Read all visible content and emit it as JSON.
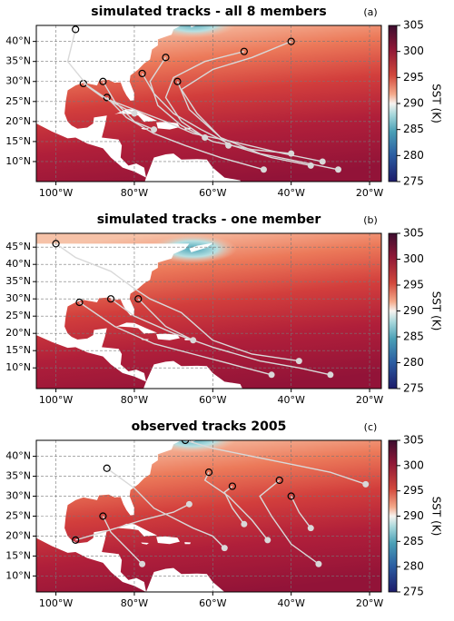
{
  "panels": [
    {
      "title": "simulated tracks - all 8 members",
      "label": "(a)",
      "xlim": [
        -105,
        -17
      ],
      "ylim": [
        5,
        44
      ],
      "xticks": [
        {
          "value": -100,
          "label": "100°W"
        },
        {
          "value": -80,
          "label": "80°W"
        },
        {
          "value": -60,
          "label": "60°W"
        },
        {
          "value": -40,
          "label": "40°W"
        },
        {
          "value": -20,
          "label": "20°W"
        }
      ],
      "yticks": [
        {
          "value": 10,
          "label": "10°N"
        },
        {
          "value": 15,
          "label": "15°N"
        },
        {
          "value": 20,
          "label": "20°N"
        },
        {
          "value": 25,
          "label": "25°N"
        },
        {
          "value": 30,
          "label": "30°N"
        },
        {
          "value": 35,
          "label": "35°N"
        },
        {
          "value": 40,
          "label": "40°N"
        }
      ],
      "colorbar": {
        "label": "SST (K)",
        "lim": [
          275,
          305
        ],
        "ticks": [
          275,
          280,
          285,
          290,
          295,
          300,
          305
        ]
      },
      "tracks": [
        {
          "lon": [
            -35,
            -45,
            -55,
            -63,
            -70,
            -75,
            -78
          ],
          "lat": [
            9,
            11,
            14,
            18,
            22,
            27,
            32
          ]
        },
        {
          "lon": [
            -40,
            -50,
            -60,
            -68,
            -74,
            -76,
            -72
          ],
          "lat": [
            12,
            13,
            15,
            19,
            24,
            30,
            36
          ]
        },
        {
          "lon": [
            -32,
            -42,
            -55,
            -65,
            -72,
            -80,
            -88,
            -93
          ],
          "lat": [
            10,
            12,
            15,
            17,
            20,
            23,
            26,
            29.5
          ]
        },
        {
          "lon": [
            -47,
            -58,
            -67,
            -75,
            -82,
            -87
          ],
          "lat": [
            8,
            11,
            14,
            17,
            21,
            26
          ]
        },
        {
          "lon": [
            -62,
            -68,
            -72,
            -70,
            -62,
            -52
          ],
          "lat": [
            16,
            20,
            26,
            31,
            35,
            37.5
          ]
        },
        {
          "lon": [
            -75,
            -80,
            -85,
            -88
          ],
          "lat": [
            18,
            20,
            25,
            30
          ]
        },
        {
          "lon": [
            -28,
            -38,
            -48,
            -58,
            -66,
            -69
          ],
          "lat": [
            8,
            10,
            12,
            16,
            23,
            30
          ]
        },
        {
          "lon": [
            -56,
            -60,
            -64,
            -68,
            -60,
            -50,
            -40
          ],
          "lat": [
            14,
            18,
            22,
            28,
            33,
            36,
            40
          ]
        },
        {
          "lon": [
            -80,
            -86,
            -92,
            -97,
            -95
          ],
          "lat": [
            22,
            25,
            29,
            35,
            43
          ]
        }
      ]
    },
    {
      "title": "simulated tracks - one member",
      "label": "(b)",
      "xlim": [
        -105,
        -17
      ],
      "ylim": [
        4,
        49
      ],
      "xticks": [
        {
          "value": -100,
          "label": "100°W"
        },
        {
          "value": -80,
          "label": "80°W"
        },
        {
          "value": -60,
          "label": "60°W"
        },
        {
          "value": -40,
          "label": "40°W"
        },
        {
          "value": -20,
          "label": "20°W"
        }
      ],
      "yticks": [
        {
          "value": 10,
          "label": "10°N"
        },
        {
          "value": 15,
          "label": "15°N"
        },
        {
          "value": 20,
          "label": "20°N"
        },
        {
          "value": 25,
          "label": "25°N"
        },
        {
          "value": 30,
          "label": "30°N"
        },
        {
          "value": 35,
          "label": "35°N"
        },
        {
          "value": 40,
          "label": "40°N"
        },
        {
          "value": 45,
          "label": "45°N"
        }
      ],
      "colorbar": {
        "label": "SST (K)",
        "lim": [
          275,
          305
        ],
        "ticks": [
          275,
          280,
          285,
          290,
          295,
          300,
          305
        ]
      },
      "tracks": [
        {
          "lon": [
            -45,
            -55,
            -65,
            -75,
            -85,
            -94
          ],
          "lat": [
            8,
            11,
            14,
            17,
            22,
            29
          ]
        },
        {
          "lon": [
            -30,
            -38,
            -48,
            -60,
            -70,
            -80,
            -86
          ],
          "lat": [
            8,
            10,
            12,
            16,
            20,
            25,
            30
          ]
        },
        {
          "lon": [
            -38,
            -50,
            -60,
            -68,
            -76,
            -80,
            -86,
            -95,
            -100
          ],
          "lat": [
            12,
            14,
            18,
            26,
            30,
            33,
            38,
            42,
            46
          ]
        },
        {
          "lon": [
            -65,
            -72,
            -79
          ],
          "lat": [
            18,
            22,
            30
          ]
        }
      ]
    },
    {
      "title": "observed tracks 2005",
      "label": "(c)",
      "xlim": [
        -105,
        -17
      ],
      "ylim": [
        6,
        44
      ],
      "xticks": [
        {
          "value": -100,
          "label": "100°W"
        },
        {
          "value": -80,
          "label": "80°W"
        },
        {
          "value": -60,
          "label": "60°W"
        },
        {
          "value": -40,
          "label": "40°W"
        },
        {
          "value": -20,
          "label": "20°W"
        }
      ],
      "yticks": [
        {
          "value": 10,
          "label": "10°N"
        },
        {
          "value": 15,
          "label": "15°N"
        },
        {
          "value": 20,
          "label": "20°N"
        },
        {
          "value": 25,
          "label": "25°N"
        },
        {
          "value": 30,
          "label": "30°N"
        },
        {
          "value": 35,
          "label": "35°N"
        },
        {
          "value": 40,
          "label": "40°N"
        }
      ],
      "colorbar": {
        "label": "SST (K)",
        "lim": [
          275,
          305
        ],
        "ticks": [
          275,
          280,
          285,
          290,
          295,
          300,
          305
        ]
      },
      "tracks": [
        {
          "lon": [
            -21,
            -30,
            -40,
            -50,
            -60,
            -67
          ],
          "lat": [
            33,
            36,
            38,
            40,
            42,
            44
          ]
        },
        {
          "lon": [
            -33,
            -40,
            -45,
            -48,
            -43
          ],
          "lat": [
            13,
            18,
            25,
            30,
            34
          ]
        },
        {
          "lon": [
            -46,
            -50,
            -56,
            -62,
            -61
          ],
          "lat": [
            19,
            24,
            30,
            34,
            36
          ]
        },
        {
          "lon": [
            -57,
            -60,
            -65,
            -75,
            -80,
            -87
          ],
          "lat": [
            17,
            20,
            22,
            27,
            32,
            37
          ]
        },
        {
          "lon": [
            -78,
            -82,
            -86,
            -88
          ],
          "lat": [
            13,
            17,
            21,
            25
          ]
        },
        {
          "lon": [
            -66,
            -70,
            -78,
            -88,
            -95
          ],
          "lat": [
            28,
            26,
            24,
            21,
            19
          ]
        },
        {
          "lon": [
            -52,
            -55,
            -57,
            -55
          ],
          "lat": [
            23,
            27,
            31,
            32.5
          ]
        },
        {
          "lon": [
            -35,
            -38,
            -40
          ],
          "lat": [
            22,
            26,
            30
          ]
        }
      ]
    }
  ]
}
